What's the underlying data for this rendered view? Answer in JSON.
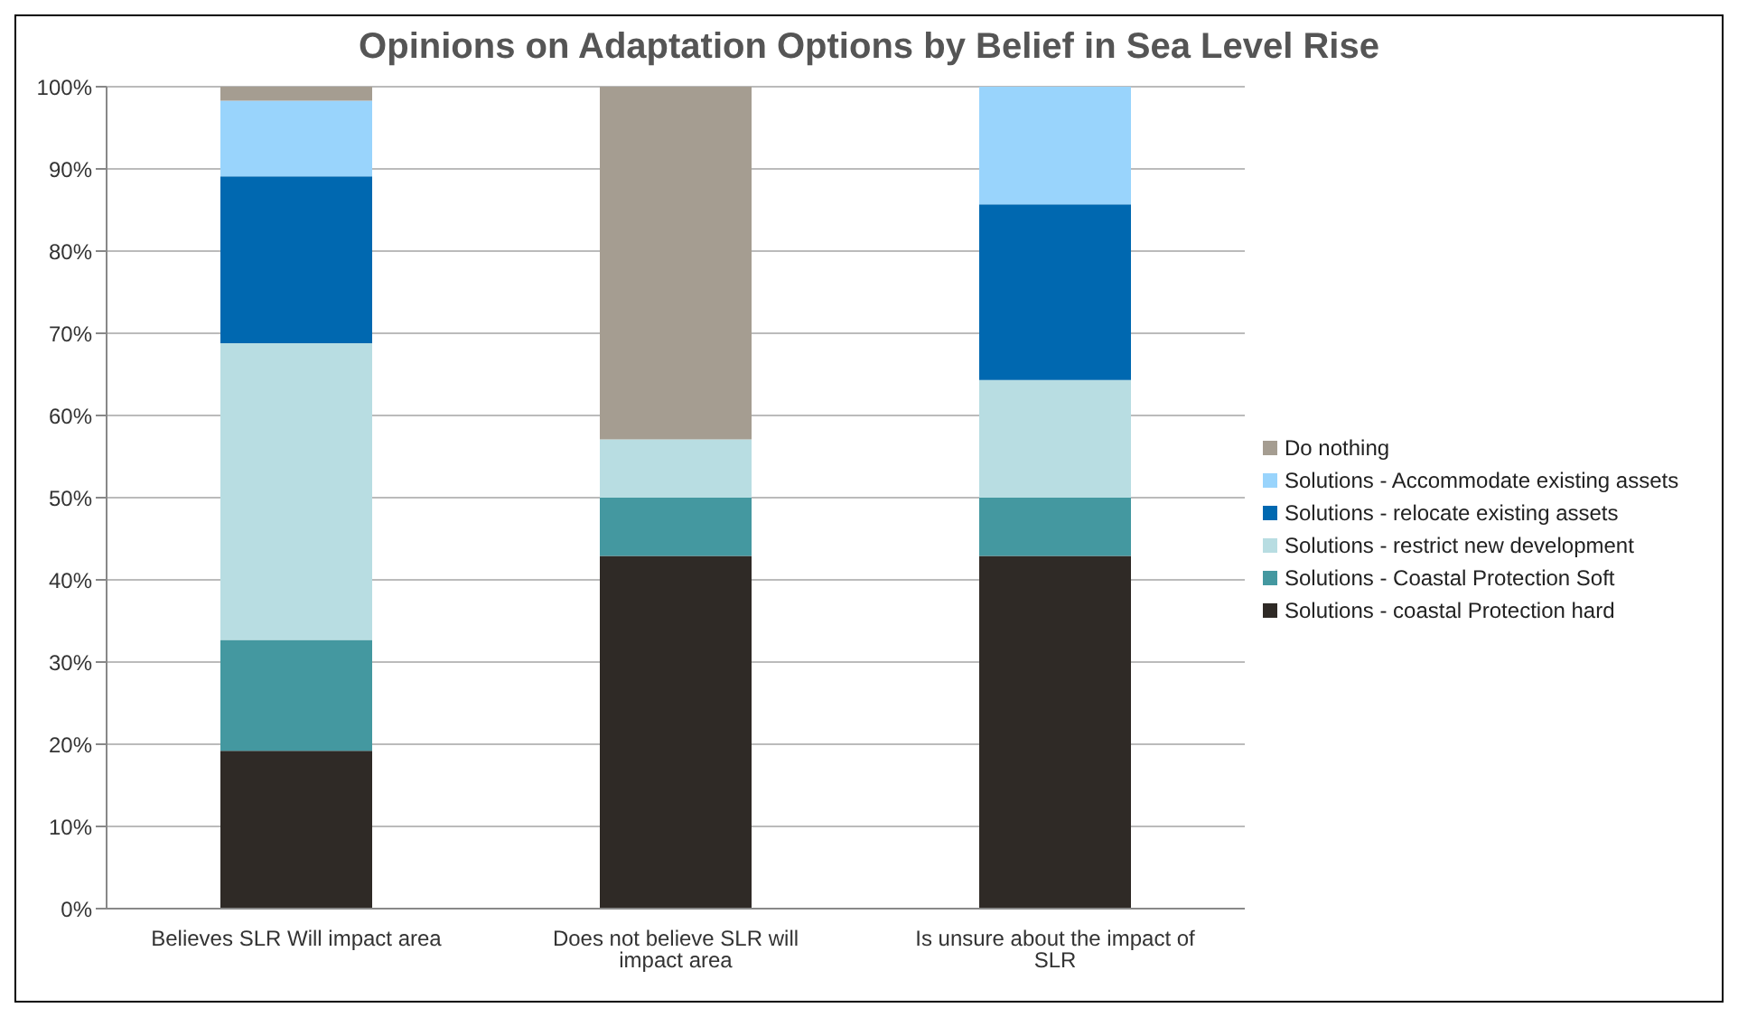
{
  "chart_data": {
    "type": "bar",
    "title": "Opinions on Adaptation Options by Belief in Sea Level Rise",
    "categories": [
      "Believes SLR Will impact area",
      "Does not believe SLR will impact area",
      "Is unsure about the impact of SLR"
    ],
    "stacked": true,
    "series": [
      {
        "name": "Solutions - coastal Protection hard",
        "color": "#2f2a26",
        "values": [
          19.2,
          42.9,
          42.9
        ]
      },
      {
        "name": "Solutions - Coastal Protection Soft",
        "color": "#4498a0",
        "values": [
          13.5,
          7.1,
          7.1
        ]
      },
      {
        "name": "Solutions - restrict new development",
        "color": "#b8dde2",
        "values": [
          36.1,
          7.1,
          14.3
        ]
      },
      {
        "name": "Solutions - relocate existing assets",
        "color": "#0068b0",
        "values": [
          20.3,
          0,
          21.4
        ]
      },
      {
        "name": "Solutions - Accommodate existing assets",
        "color": "#99d4fc",
        "values": [
          9.2,
          0,
          14.3
        ]
      },
      {
        "name": "Do nothing",
        "color": "#a59d91",
        "values": [
          1.7,
          42.9,
          0
        ]
      }
    ],
    "ylim": [
      0,
      100
    ],
    "yticks": [
      {
        "value": 0,
        "label": "0%"
      },
      {
        "value": 10,
        "label": "10%"
      },
      {
        "value": 20,
        "label": "20%"
      },
      {
        "value": 30,
        "label": "30%"
      },
      {
        "value": 40,
        "label": "40%"
      },
      {
        "value": 50,
        "label": "50%"
      },
      {
        "value": 60,
        "label": "60%"
      },
      {
        "value": 70,
        "label": "70%"
      },
      {
        "value": 80,
        "label": "80%"
      },
      {
        "value": 90,
        "label": "90%"
      },
      {
        "value": 100,
        "label": "100%"
      }
    ],
    "grid": "y",
    "legend": "right"
  }
}
